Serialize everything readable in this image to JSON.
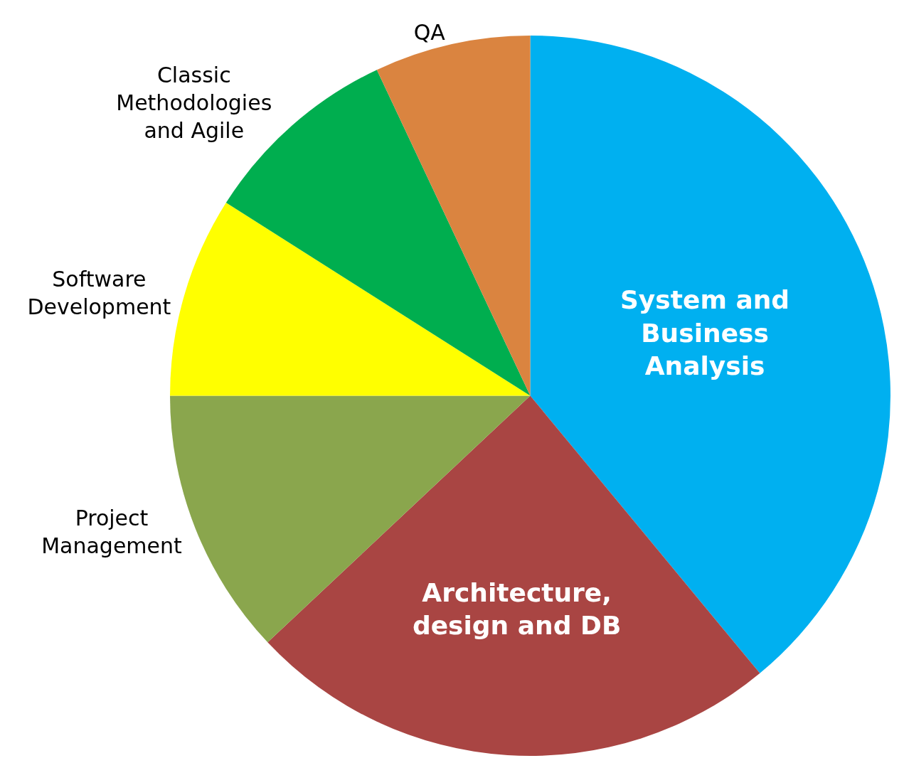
{
  "chart_data": {
    "type": "pie",
    "categories": [
      "System and Business Analysis",
      "Architecture, design and DB",
      "Project Management",
      "Software Development",
      "Classic Methodologies and Agile",
      "QA"
    ],
    "values": [
      39,
      24,
      12,
      9,
      9,
      7
    ],
    "colors": [
      "#00b0f0",
      "#a94543",
      "#8aa64d",
      "#ffff00",
      "#00ae4f",
      "#da8440"
    ]
  }
}
